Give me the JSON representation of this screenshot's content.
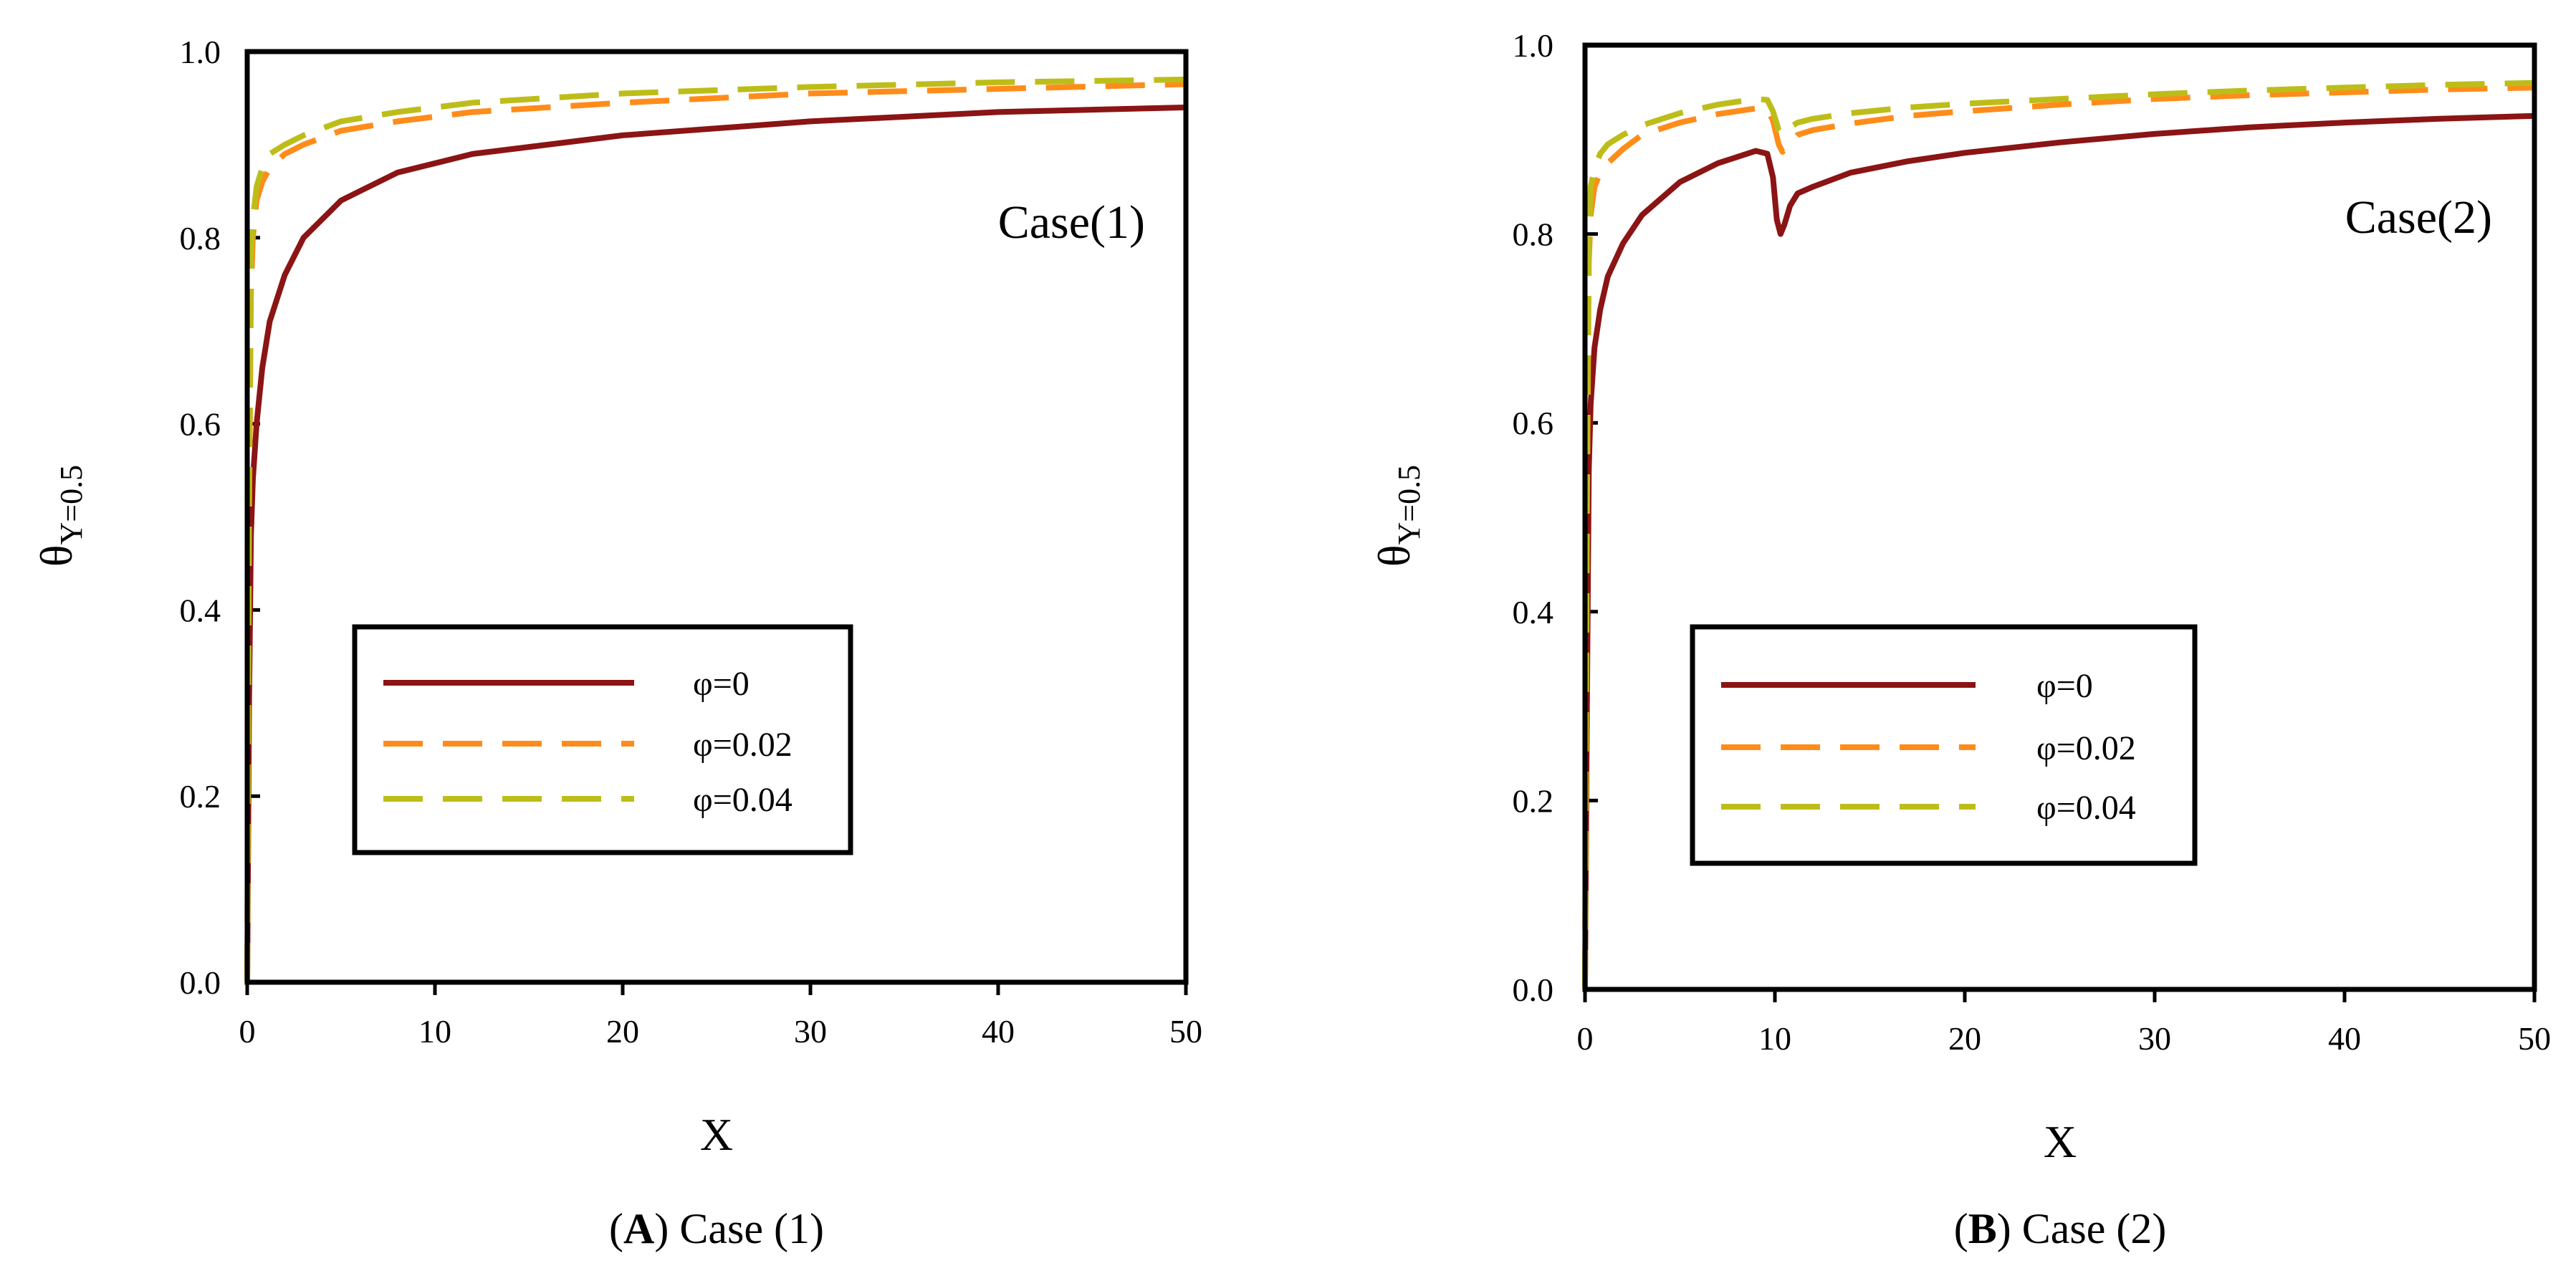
{
  "colors": {
    "phi0": "#8b1414",
    "phi002": "#ff8c1a",
    "phi004": "#bdbd1a",
    "case_label": "#4444ee",
    "axes": "#000000"
  },
  "chart_data": [
    {
      "type": "line",
      "panel": "A",
      "case_label": "Case(1)",
      "caption": {
        "letter": "A",
        "text": " Case (1)"
      },
      "xlabel": "X",
      "ylabel": {
        "main": "θ",
        "sub": "Y=0.5"
      },
      "xlim": [
        0,
        50
      ],
      "ylim": [
        0,
        1
      ],
      "x_ticks": [
        0,
        10,
        20,
        30,
        40,
        50
      ],
      "y_ticks": [
        "0.0",
        "0.2",
        "0.4",
        "0.6",
        "0.8",
        "1.0"
      ],
      "legend": {
        "position": "lower-center",
        "entries": [
          "φ=0",
          "φ=0.02",
          "φ=0.04"
        ]
      },
      "series": [
        {
          "name": "φ=0",
          "style": "solid",
          "x": [
            0,
            0.1,
            0.2,
            0.3,
            0.5,
            0.8,
            1.2,
            2,
            3,
            5,
            8,
            12,
            20,
            30,
            40,
            50
          ],
          "y": [
            0,
            0.3,
            0.48,
            0.54,
            0.6,
            0.66,
            0.71,
            0.76,
            0.8,
            0.84,
            0.87,
            0.89,
            0.91,
            0.925,
            0.935,
            0.94
          ]
        },
        {
          "name": "φ=0.02",
          "style": "dashed",
          "x": [
            0,
            0.1,
            0.2,
            0.3,
            0.5,
            0.8,
            1.2,
            2,
            3,
            5,
            8,
            12,
            20,
            30,
            40,
            50
          ],
          "y": [
            0,
            0.5,
            0.74,
            0.8,
            0.84,
            0.86,
            0.875,
            0.89,
            0.9,
            0.915,
            0.925,
            0.935,
            0.945,
            0.955,
            0.96,
            0.965
          ]
        },
        {
          "name": "φ=0.04",
          "style": "dashed",
          "x": [
            0,
            0.1,
            0.2,
            0.3,
            0.5,
            0.8,
            1.2,
            2,
            3,
            5,
            8,
            12,
            20,
            30,
            40,
            50
          ],
          "y": [
            0,
            0.55,
            0.78,
            0.82,
            0.855,
            0.875,
            0.89,
            0.9,
            0.91,
            0.925,
            0.935,
            0.945,
            0.955,
            0.962,
            0.967,
            0.97
          ]
        }
      ]
    },
    {
      "type": "line",
      "panel": "B",
      "case_label": "Case(2)",
      "caption": {
        "letter": "B",
        "text": " Case (2)"
      },
      "xlabel": "X",
      "ylabel": {
        "main": "θ",
        "sub": "Y=0.5"
      },
      "xlim": [
        0,
        50
      ],
      "ylim": [
        0,
        1
      ],
      "x_ticks": [
        0,
        10,
        20,
        30,
        40,
        50
      ],
      "y_ticks": [
        "0.0",
        "0.2",
        "0.4",
        "0.6",
        "0.8",
        "1.0"
      ],
      "legend": {
        "position": "lower-center",
        "entries": [
          "φ=0",
          "φ=0.02",
          "φ=0.04"
        ]
      },
      "series": [
        {
          "name": "φ=0",
          "style": "solid",
          "x": [
            0,
            0.1,
            0.2,
            0.3,
            0.5,
            0.8,
            1.2,
            2,
            3,
            5,
            7,
            9,
            9.6,
            9.9,
            10.1,
            10.3,
            10.5,
            10.8,
            11.2,
            12,
            14,
            17,
            20,
            25,
            30,
            35,
            40,
            45,
            50
          ],
          "y": [
            0,
            0.3,
            0.55,
            0.62,
            0.68,
            0.72,
            0.755,
            0.79,
            0.82,
            0.855,
            0.875,
            0.888,
            0.885,
            0.86,
            0.815,
            0.8,
            0.81,
            0.83,
            0.843,
            0.85,
            0.865,
            0.877,
            0.886,
            0.897,
            0.906,
            0.913,
            0.918,
            0.922,
            0.925
          ]
        },
        {
          "name": "φ=0.02",
          "style": "dashed",
          "x": [
            0,
            0.1,
            0.2,
            0.3,
            0.5,
            0.8,
            1.2,
            2,
            3,
            5,
            7,
            9,
            9.6,
            9.9,
            10.2,
            10.4,
            10.7,
            11.2,
            12,
            14,
            17,
            20,
            25,
            30,
            35,
            40,
            45,
            50
          ],
          "y": [
            0,
            0.5,
            0.77,
            0.82,
            0.85,
            0.865,
            0.875,
            0.89,
            0.905,
            0.918,
            0.927,
            0.933,
            0.932,
            0.92,
            0.895,
            0.887,
            0.895,
            0.905,
            0.91,
            0.917,
            0.925,
            0.93,
            0.937,
            0.943,
            0.947,
            0.95,
            0.953,
            0.955
          ]
        },
        {
          "name": "φ=0.04",
          "style": "dashed",
          "x": [
            0,
            0.1,
            0.2,
            0.3,
            0.5,
            0.8,
            1.2,
            2,
            3,
            5,
            7,
            9,
            9.6,
            9.9,
            10.2,
            10.4,
            10.7,
            11.2,
            12,
            14,
            17,
            20,
            25,
            30,
            35,
            40,
            45,
            50
          ],
          "y": [
            0,
            0.55,
            0.8,
            0.85,
            0.87,
            0.885,
            0.895,
            0.905,
            0.915,
            0.928,
            0.937,
            0.943,
            0.942,
            0.93,
            0.91,
            0.905,
            0.912,
            0.918,
            0.922,
            0.928,
            0.934,
            0.938,
            0.943,
            0.948,
            0.952,
            0.955,
            0.958,
            0.96
          ]
        }
      ]
    }
  ]
}
